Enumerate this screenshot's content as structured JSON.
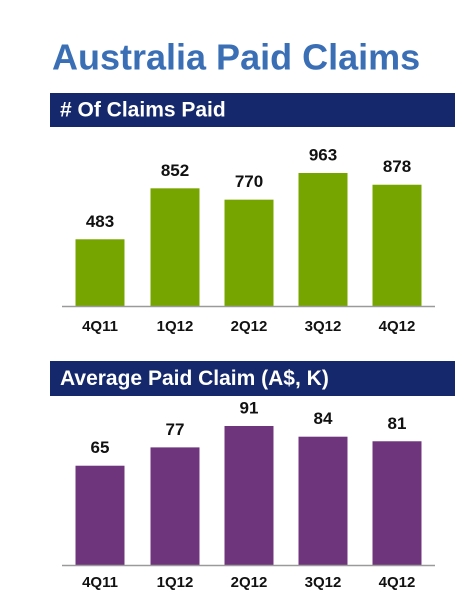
{
  "title": "Australia Paid Claims",
  "chart_data": [
    {
      "type": "bar",
      "title": "# Of Claims Paid",
      "categories": [
        "4Q11",
        "1Q12",
        "2Q12",
        "3Q12",
        "4Q12"
      ],
      "values": [
        483,
        852,
        770,
        963,
        878
      ],
      "color": "#77a500"
    },
    {
      "type": "bar",
      "title": "Average Paid Claim (A$, K)",
      "categories": [
        "4Q11",
        "1Q12",
        "2Q12",
        "3Q12",
        "4Q12"
      ],
      "values": [
        65,
        77,
        91,
        84,
        81
      ],
      "color": "#6f357c"
    }
  ]
}
